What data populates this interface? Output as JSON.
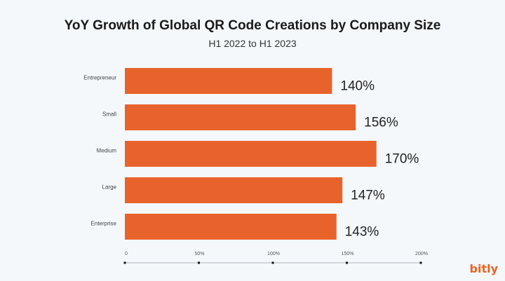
{
  "chart_data": {
    "type": "bar",
    "orientation": "horizontal",
    "title": "YoY Growth of Global QR Code Creations by Company Size",
    "subtitle": "H1 2022 to H1 2023",
    "categories": [
      "Entrepreneur",
      "Small",
      "Medium",
      "Large",
      "Enterprise"
    ],
    "values": [
      140,
      156,
      170,
      147,
      143
    ],
    "data_labels": [
      "140%",
      "156%",
      "170%",
      "147%",
      "143%"
    ],
    "xlim": [
      0,
      200
    ],
    "x_ticks": [
      0,
      50,
      100,
      150,
      200
    ],
    "x_tick_labels": [
      "0",
      "50%",
      "100%",
      "150%",
      "200%"
    ],
    "grid": false,
    "bar_color": "#e8632c"
  },
  "brand": {
    "logo_text": "bitly",
    "color": "#ee6123"
  }
}
